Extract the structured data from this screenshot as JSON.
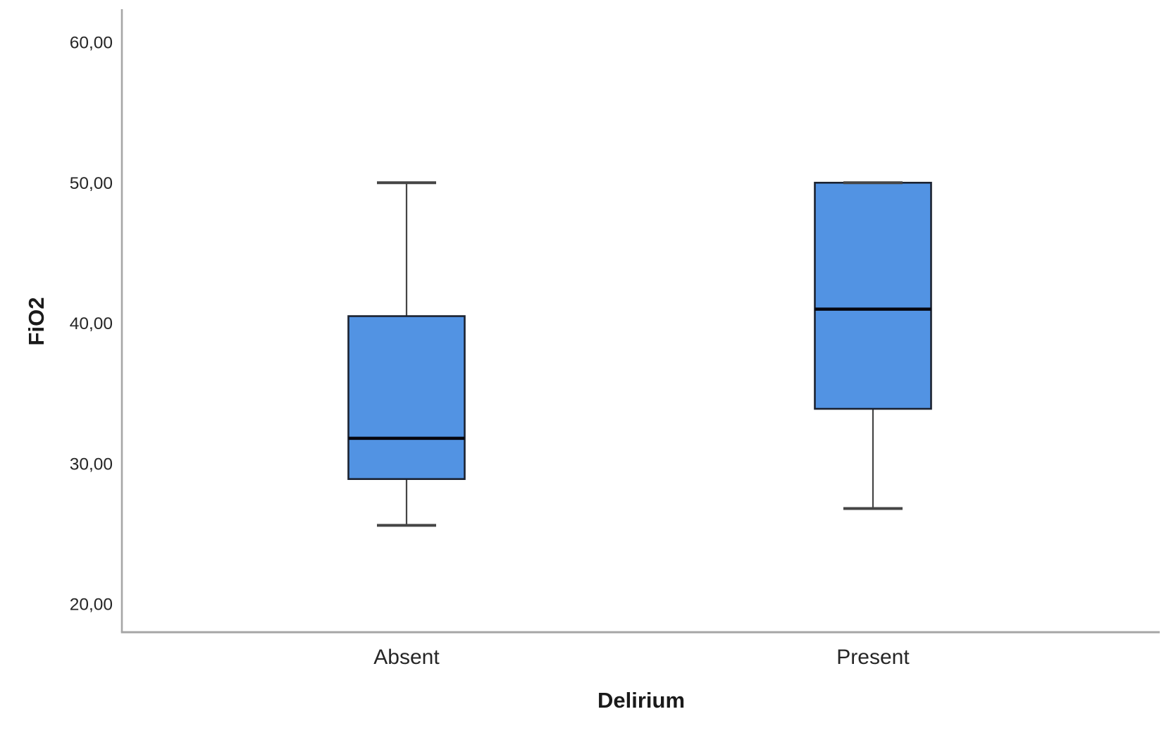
{
  "chart_data": {
    "type": "boxplot",
    "title": "",
    "xlabel": "Delirium",
    "ylabel": "FiO2",
    "categories": [
      "Absent",
      "Present"
    ],
    "yticks": [
      "20,00",
      "30,00",
      "40,00",
      "50,00",
      "60,00"
    ],
    "ytick_values": [
      20,
      30,
      40,
      50,
      60
    ],
    "ylim": [
      18.0,
      62.4
    ],
    "grid": false,
    "legend": "none",
    "series": [
      {
        "category": "Absent",
        "min": 25.6,
        "q1": 28.9,
        "median": 31.8,
        "q3": 40.5,
        "max": 50.0
      },
      {
        "category": "Present",
        "min": 26.8,
        "q1": 33.9,
        "median": 41.0,
        "q3": 50.0,
        "max": 50.0
      }
    ],
    "colors": {
      "box_fill": "#5293E3",
      "box_border": "#1B2230",
      "median": "#06060F",
      "whisker": "#454545",
      "axis": "#A6A6A6",
      "text": "#262626"
    }
  }
}
